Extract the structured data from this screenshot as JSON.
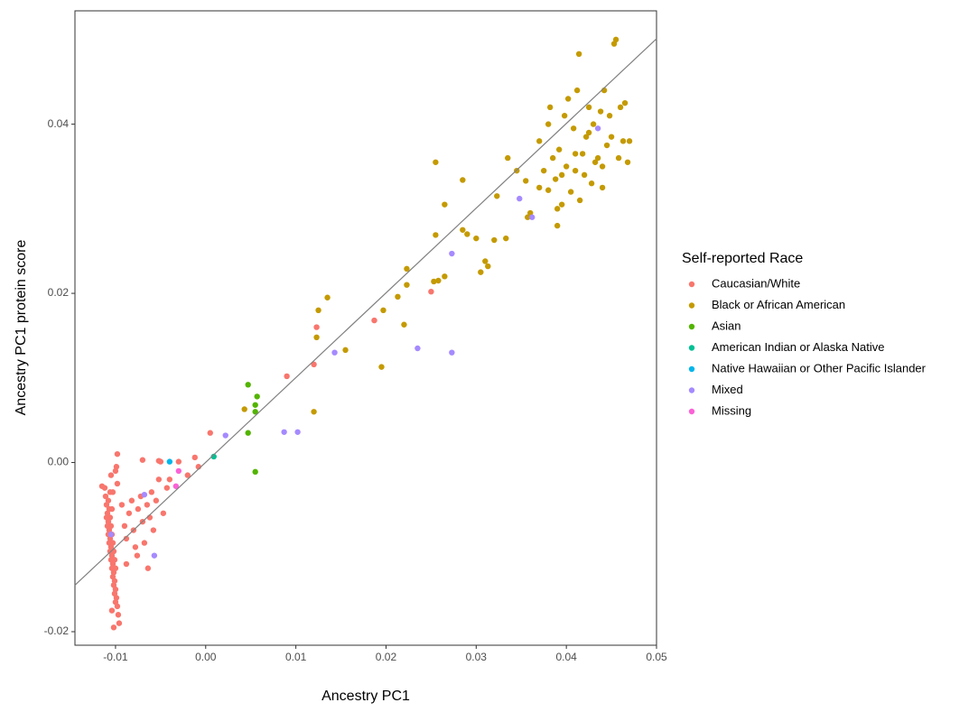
{
  "chart_data": {
    "type": "scatter",
    "x_label": "Ancestry PC1",
    "y_label": "Ancestry PC1 protein score",
    "legend_title": "Self-reported Race",
    "xlim": [
      -0.0145,
      0.05
    ],
    "ylim": [
      -0.0216,
      0.0534
    ],
    "xticks": [
      -0.01,
      {
        "value": 0,
        "label": "0.00"
      },
      0.01,
      0.02,
      0.03,
      0.04,
      0.05
    ],
    "yticks": [
      -0.02,
      {
        "value": 0,
        "label": "0.00"
      },
      0.02,
      0.04
    ],
    "fit_line": {
      "x": [
        -0.0145,
        0.05
      ],
      "y": [
        -0.0145,
        0.0501
      ]
    },
    "series": [
      {
        "name": "Caucasian/White",
        "color": "#F8766D",
        "x": [
          -0.0112,
          -0.011,
          -0.0108,
          -0.0106,
          -0.0104,
          -0.0102,
          -0.01,
          -0.0098,
          -0.0096,
          -0.0111,
          -0.0109,
          -0.0107,
          -0.0105,
          -0.0103,
          -0.0101,
          -0.0099,
          -0.0097,
          -0.011,
          -0.0108,
          -0.0106,
          -0.0104,
          -0.0102,
          -0.01,
          -0.0098,
          -0.0109,
          -0.0107,
          -0.0105,
          -0.0103,
          -0.0101,
          -0.0099,
          -0.0108,
          -0.0106,
          -0.0104,
          -0.0102,
          -0.01,
          -0.0107,
          -0.0105,
          -0.0103,
          -0.0101,
          -0.0106,
          -0.0104,
          -0.0102,
          -0.0105,
          -0.0103,
          -0.0104,
          -0.0115,
          -0.0098,
          -0.01,
          -0.0093,
          -0.009,
          -0.0088,
          -0.0085,
          -0.0082,
          -0.008,
          -0.0078,
          -0.0075,
          -0.0072,
          -0.007,
          -0.0068,
          -0.0065,
          -0.0062,
          -0.006,
          -0.0058,
          -0.0055,
          -0.0052,
          -0.005,
          -0.0047,
          -0.0043,
          -0.004,
          -0.007,
          -0.0052,
          -0.003,
          -0.002,
          -0.0012,
          -0.0008,
          0.0005,
          0.009,
          0.012,
          0.0123,
          0.0187,
          0.025,
          -0.0088,
          -0.0076,
          -0.0064
        ],
        "y": [
          -0.003,
          -0.005,
          -0.007,
          -0.009,
          -0.011,
          -0.013,
          -0.015,
          -0.017,
          -0.019,
          -0.004,
          -0.006,
          -0.008,
          -0.01,
          -0.012,
          -0.014,
          -0.016,
          -0.018,
          -0.0065,
          -0.0085,
          -0.0105,
          -0.0125,
          -0.0145,
          -0.0165,
          -0.0025,
          -0.0075,
          -0.0095,
          -0.0115,
          -0.0135,
          -0.0155,
          -0.0005,
          -0.0045,
          -0.0065,
          -0.0085,
          -0.0105,
          -0.0125,
          -0.0055,
          -0.0075,
          -0.0095,
          -0.0115,
          -0.0035,
          -0.0055,
          -0.0195,
          -0.0015,
          -0.0035,
          -0.0175,
          -0.0028,
          0.001,
          -0.001,
          -0.005,
          -0.0075,
          -0.009,
          -0.006,
          -0.0045,
          -0.008,
          -0.01,
          -0.0055,
          -0.004,
          -0.007,
          -0.0095,
          -0.005,
          -0.0065,
          -0.0035,
          -0.008,
          -0.0045,
          -0.002,
          0.0001,
          -0.006,
          -0.003,
          -0.002,
          0.0003,
          0.0002,
          0.0001,
          -0.0015,
          0.0006,
          -0.0005,
          0.0035,
          0.0102,
          0.0116,
          0.016,
          0.0168,
          0.0202,
          -0.012,
          -0.011,
          -0.0125
        ]
      },
      {
        "name": "Black or African American",
        "color": "#C49A00",
        "x": [
          0.0043,
          0.012,
          0.0123,
          0.0125,
          0.0135,
          0.0155,
          0.0195,
          0.0197,
          0.0213,
          0.022,
          0.0223,
          0.0223,
          0.0253,
          0.0258,
          0.0255,
          0.0255,
          0.0265,
          0.0265,
          0.0285,
          0.0285,
          0.029,
          0.03,
          0.0305,
          0.031,
          0.0313,
          0.032,
          0.0323,
          0.0333,
          0.0335,
          0.0345,
          0.0355,
          0.0357,
          0.036,
          0.037,
          0.037,
          0.0375,
          0.038,
          0.0382,
          0.0385,
          0.0388,
          0.039,
          0.0392,
          0.0395,
          0.0398,
          0.04,
          0.0402,
          0.0405,
          0.0408,
          0.041,
          0.0412,
          0.0415,
          0.0418,
          0.042,
          0.0422,
          0.0425,
          0.0428,
          0.043,
          0.0432,
          0.0435,
          0.0438,
          0.044,
          0.0442,
          0.0445,
          0.0448,
          0.045,
          0.0453,
          0.0455,
          0.0458,
          0.046,
          0.0463,
          0.0465,
          0.0468,
          0.047,
          0.0414,
          0.039,
          0.038,
          0.041,
          0.044,
          0.0395,
          0.0425
        ],
        "y": [
          0.0063,
          0.006,
          0.0148,
          0.018,
          0.0195,
          0.0133,
          0.0113,
          0.018,
          0.0196,
          0.0163,
          0.0229,
          0.021,
          0.0214,
          0.0215,
          0.0269,
          0.0355,
          0.022,
          0.0305,
          0.0275,
          0.0334,
          0.027,
          0.0265,
          0.0225,
          0.0238,
          0.0232,
          0.0263,
          0.0315,
          0.0265,
          0.036,
          0.0345,
          0.0333,
          0.029,
          0.0295,
          0.0325,
          0.038,
          0.0345,
          0.0322,
          0.042,
          0.036,
          0.0335,
          0.028,
          0.037,
          0.0305,
          0.041,
          0.035,
          0.043,
          0.032,
          0.0395,
          0.0345,
          0.044,
          0.031,
          0.0365,
          0.034,
          0.0385,
          0.042,
          0.033,
          0.04,
          0.0355,
          0.036,
          0.0415,
          0.0325,
          0.044,
          0.0375,
          0.041,
          0.0385,
          0.0495,
          0.05,
          0.036,
          0.042,
          0.038,
          0.0425,
          0.0355,
          0.038,
          0.0483,
          0.03,
          0.04,
          0.0365,
          0.035,
          0.034,
          0.039
        ]
      },
      {
        "name": "Asian",
        "color": "#53B400",
        "x": [
          0.0047,
          0.0057,
          0.0055,
          0.0055,
          0.0047,
          0.0055
        ],
        "y": [
          0.0092,
          0.0078,
          0.0068,
          0.006,
          0.0035,
          -0.0011
        ]
      },
      {
        "name": "American Indian or Alaska Native",
        "color": "#00C094",
        "x": [
          0.0009
        ],
        "y": [
          0.0007
        ]
      },
      {
        "name": "Native Hawaiian or Other Pacific Islander",
        "color": "#00B6EB",
        "x": [
          -0.004
        ],
        "y": [
          0.0001
        ]
      },
      {
        "name": "Mixed",
        "color": "#A58AFF",
        "x": [
          0.0022,
          0.0087,
          0.0102,
          0.0143,
          0.0235,
          0.0273,
          0.0273,
          0.0348,
          0.0362,
          0.0435,
          -0.0057,
          -0.0068,
          -0.0105
        ],
        "y": [
          0.0032,
          0.0036,
          0.0036,
          0.013,
          0.0135,
          0.013,
          0.0247,
          0.0312,
          0.029,
          0.0395,
          -0.011,
          -0.0038,
          -0.0085
        ]
      },
      {
        "name": "Missing",
        "color": "#FB61D7",
        "x": [
          -0.0033,
          -0.003
        ],
        "y": [
          -0.0028,
          -0.001
        ]
      }
    ]
  }
}
